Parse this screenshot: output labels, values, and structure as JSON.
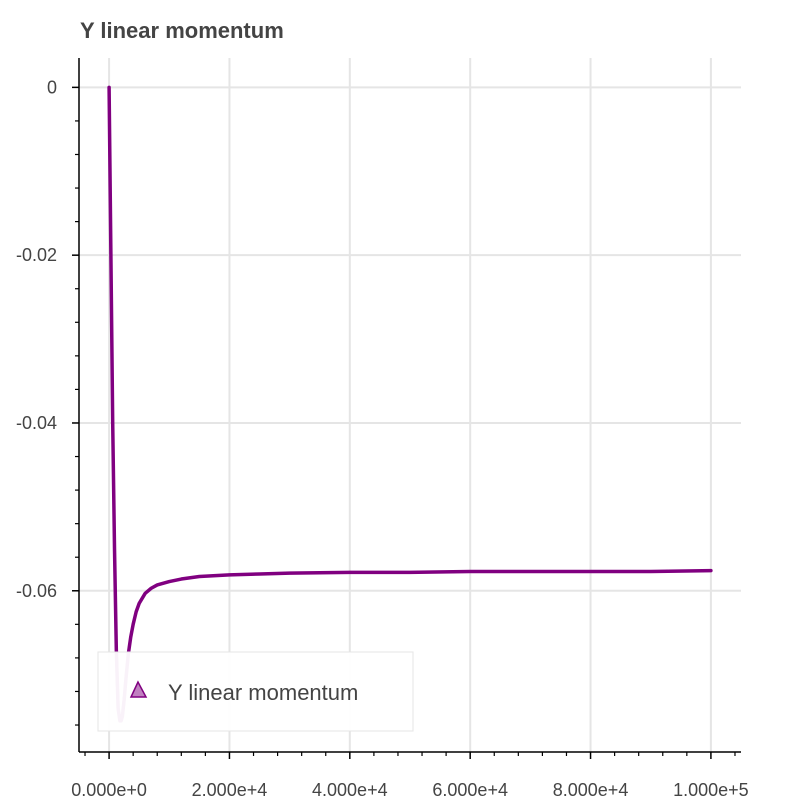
{
  "chart_data": {
    "type": "line",
    "title": "Y linear momentum",
    "xlabel": "",
    "ylabel": "",
    "xlim": [
      -5000,
      105000
    ],
    "ylim": [
      -0.0785,
      0.0035
    ],
    "grid": true,
    "legend_position": "bottom-left",
    "x_ticks": [
      0,
      20000,
      40000,
      60000,
      80000,
      100000
    ],
    "x_tick_labels": [
      "0.000e+0",
      "2.000e+4",
      "4.000e+4",
      "6.000e+4",
      "8.000e+4",
      "1.000e+5"
    ],
    "y_ticks": [
      0,
      -0.02,
      -0.04,
      -0.06
    ],
    "y_tick_labels": [
      "0",
      "-0.02",
      "-0.04",
      "-0.06"
    ],
    "series": [
      {
        "name": "Y linear momentum",
        "color": "#800080",
        "marker": "triangle",
        "x": [
          0,
          300,
          600,
          900,
          1200,
          1500,
          1800,
          2000,
          2200,
          2500,
          2800,
          3200,
          3600,
          4000,
          4500,
          5000,
          6000,
          7000,
          8000,
          10000,
          12000,
          15000,
          20000,
          25000,
          30000,
          40000,
          50000,
          60000,
          70000,
          80000,
          90000,
          100000
        ],
        "y": [
          0,
          -0.02,
          -0.04,
          -0.055,
          -0.067,
          -0.074,
          -0.0755,
          -0.0755,
          -0.075,
          -0.073,
          -0.0705,
          -0.0675,
          -0.0655,
          -0.064,
          -0.0625,
          -0.0615,
          -0.0603,
          -0.0597,
          -0.0593,
          -0.0589,
          -0.0586,
          -0.0583,
          -0.0581,
          -0.058,
          -0.0579,
          -0.0578,
          -0.0578,
          -0.0577,
          -0.0577,
          -0.0577,
          -0.0577,
          -0.0576
        ]
      }
    ]
  }
}
